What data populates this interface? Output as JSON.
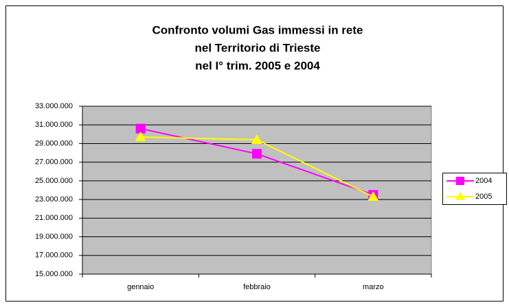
{
  "chart_data": {
    "type": "line",
    "title": [
      "Confronto volumi Gas immessi in rete",
      "nel Territorio di Trieste",
      "nel I° trim. 2005 e 2004"
    ],
    "categories": [
      "gennaio",
      "febbraio",
      "marzo"
    ],
    "series": [
      {
        "name": "2004",
        "color": "#ff00ff",
        "marker": "square",
        "values": [
          30600000,
          27900000,
          23500000
        ]
      },
      {
        "name": "2005",
        "color": "#ffff00",
        "marker": "triangle",
        "values": [
          29700000,
          29400000,
          23300000
        ]
      }
    ],
    "ylim": [
      15000000,
      33000000
    ],
    "yticks": [
      {
        "value": 15000000,
        "label": "15.000.000"
      },
      {
        "value": 17000000,
        "label": "17.000.000"
      },
      {
        "value": 19000000,
        "label": "19.000.000"
      },
      {
        "value": 21000000,
        "label": "21.000.000"
      },
      {
        "value": 23000000,
        "label": "23.000.000"
      },
      {
        "value": 25000000,
        "label": "25.000.000"
      },
      {
        "value": 27000000,
        "label": "27.000.000"
      },
      {
        "value": 29000000,
        "label": "29.000.000"
      },
      {
        "value": 31000000,
        "label": "31.000.000"
      },
      {
        "value": 33000000,
        "label": "33.000.000"
      }
    ],
    "grid": true,
    "legend": "right",
    "plot_background": "#c0c0c0"
  }
}
